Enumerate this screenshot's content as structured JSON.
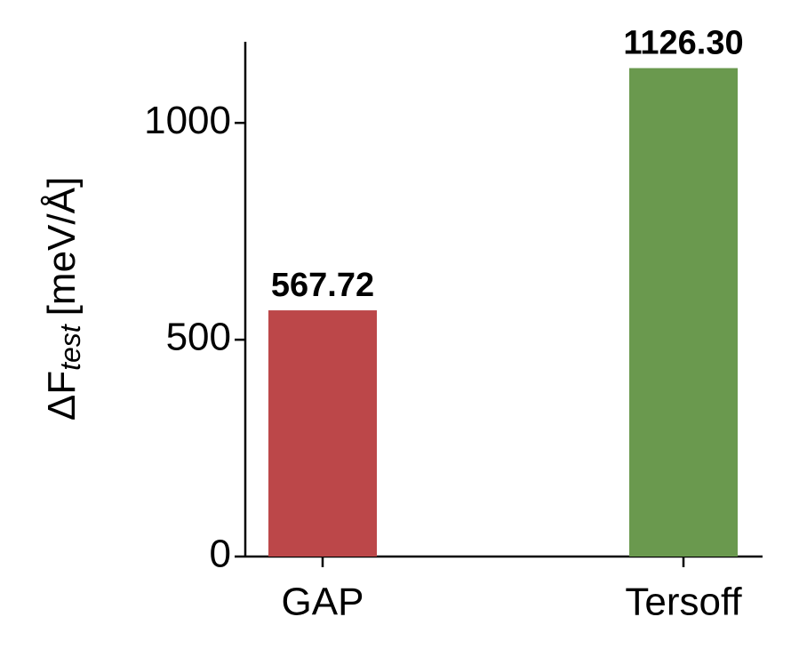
{
  "chart_data": {
    "type": "bar",
    "y_label": {
      "symbol": "ΔF",
      "subscript": "test",
      "unit": "[meV/Å]"
    },
    "categories": [
      "GAP",
      "Tersoff"
    ],
    "values": [
      567.72,
      1126.3
    ],
    "value_labels": [
      "567.72",
      "1126.30"
    ],
    "colors": [
      "#bc4749",
      "#6a994e"
    ],
    "ylim": [
      0,
      1187
    ],
    "yticks": [
      0,
      500,
      1000
    ],
    "grid": false
  }
}
